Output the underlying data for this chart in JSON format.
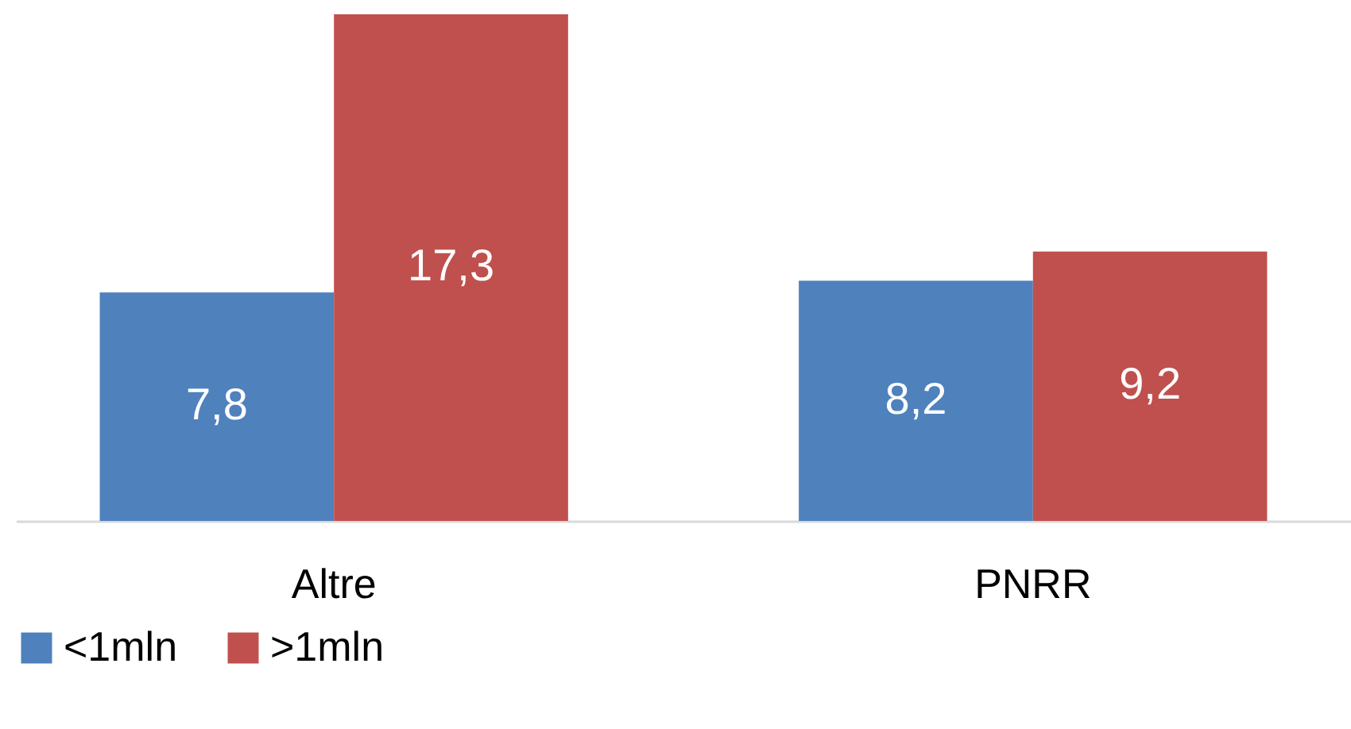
{
  "chart_data": {
    "type": "bar",
    "categories": [
      "Altre",
      "PNRR"
    ],
    "series": [
      {
        "name": "<1mln",
        "color": "#4f81bd",
        "values": [
          7.8,
          8.2
        ],
        "value_labels": [
          "7,8",
          "8,2"
        ]
      },
      {
        "name": ">1mln",
        "color": "#c0504d",
        "values": [
          17.3,
          9.2
        ],
        "value_labels": [
          "17,3",
          "9,2"
        ]
      }
    ],
    "legend": "bottom",
    "grid": false
  }
}
